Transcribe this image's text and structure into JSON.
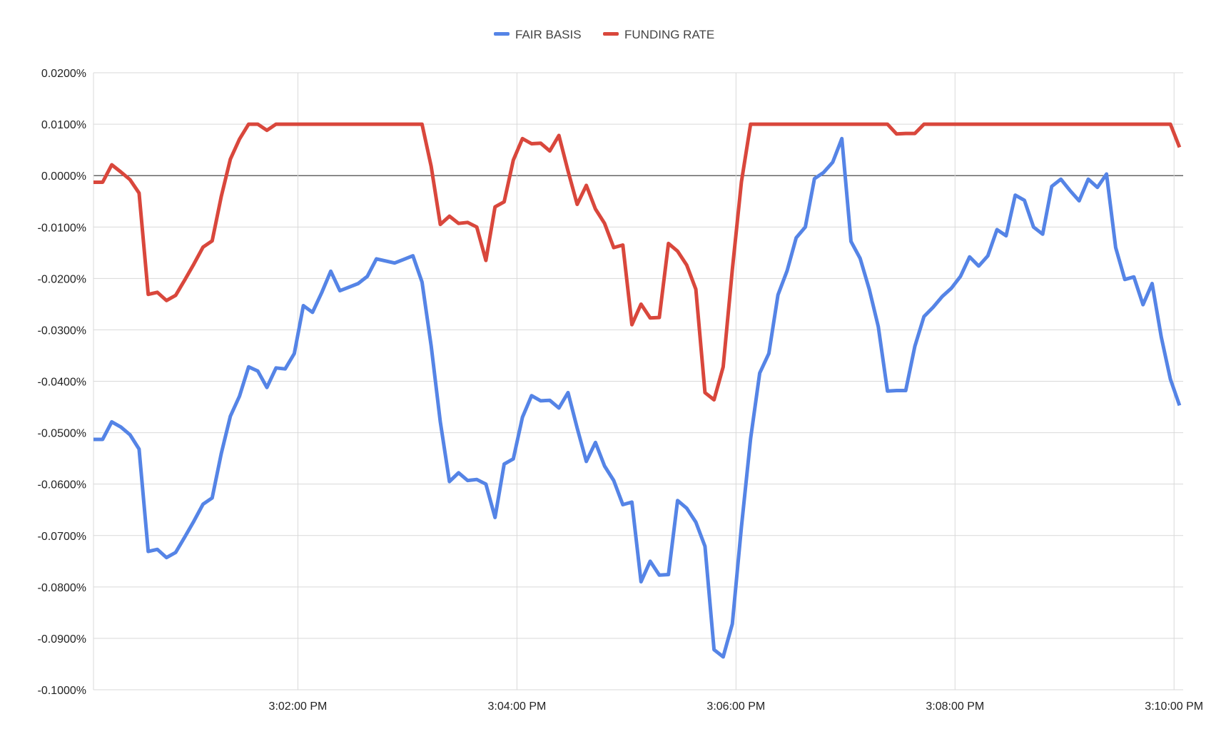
{
  "colors": {
    "fair_basis": "#5584e6",
    "funding_rate": "#d9473c",
    "grid": "#d9d9d9",
    "zero_line": "#333333"
  },
  "chart_data": {
    "type": "line",
    "legend": {
      "position": "top",
      "entries": [
        "FAIR BASIS",
        "FUNDING RATE"
      ]
    },
    "grid": true,
    "ylim": [
      -0.1,
      0.02
    ],
    "y_ticks": [
      0.02,
      0.01,
      0.0,
      -0.01,
      -0.02,
      -0.03,
      -0.04,
      -0.05,
      -0.06,
      -0.07,
      -0.08,
      -0.09,
      -0.1
    ],
    "y_tick_labels": [
      "0.0200%",
      "0.0100%",
      "0.0000%",
      "-0.0100%",
      "-0.0200%",
      "-0.0300%",
      "-0.0400%",
      "-0.0500%",
      "-0.0600%",
      "-0.0700%",
      "-0.0800%",
      "-0.0900%",
      "-0.1000%"
    ],
    "xlim": [
      "3:00:08 PM",
      "3:10:05 PM"
    ],
    "x_ticks": [
      "3:02:00 PM",
      "3:04:00 PM",
      "3:06:00 PM",
      "3:08:00 PM",
      "3:10:00 PM"
    ],
    "x_tick_labels": [
      "3:02:00 PM",
      "3:04:00 PM",
      "3:06:00 PM",
      "3:08:00 PM",
      "3:10:00 PM"
    ],
    "series": [
      {
        "name": "FAIR BASIS",
        "points": [
          [
            "3:00:08 PM",
            -0.0513
          ],
          [
            "3:00:13 PM",
            -0.0513
          ],
          [
            "3:00:18 PM",
            -0.0479
          ],
          [
            "3:00:23 PM",
            -0.0489
          ],
          [
            "3:00:28 PM",
            -0.0504
          ],
          [
            "3:00:33 PM",
            -0.0532
          ],
          [
            "3:00:38 PM",
            -0.0731
          ],
          [
            "3:00:43 PM",
            -0.0727
          ],
          [
            "3:00:48 PM",
            -0.0743
          ],
          [
            "3:00:53 PM",
            -0.0733
          ],
          [
            "3:00:58 PM",
            -0.0703
          ],
          [
            "3:01:03 PM",
            -0.0672
          ],
          [
            "3:01:08 PM",
            -0.0639
          ],
          [
            "3:01:13 PM",
            -0.0627
          ],
          [
            "3:01:18 PM",
            -0.0541
          ],
          [
            "3:01:23 PM",
            -0.0468
          ],
          [
            "3:01:28 PM",
            -0.0429
          ],
          [
            "3:01:33 PM",
            -0.0372
          ],
          [
            "3:01:38 PM",
            -0.038
          ],
          [
            "3:01:43 PM",
            -0.0412
          ],
          [
            "3:01:48 PM",
            -0.0374
          ],
          [
            "3:01:53 PM",
            -0.0376
          ],
          [
            "3:01:58 PM",
            -0.0346
          ],
          [
            "3:02:03 PM",
            -0.0253
          ],
          [
            "3:02:08 PM",
            -0.0266
          ],
          [
            "3:02:13 PM",
            -0.0228
          ],
          [
            "3:02:18 PM",
            -0.0186
          ],
          [
            "3:02:23 PM",
            -0.0224
          ],
          [
            "3:02:28 PM",
            -0.0217
          ],
          [
            "3:02:33 PM",
            -0.021
          ],
          [
            "3:02:38 PM",
            -0.0196
          ],
          [
            "3:02:43 PM",
            -0.0162
          ],
          [
            "3:02:48 PM",
            -0.0166
          ],
          [
            "3:02:53 PM",
            -0.017
          ],
          [
            "3:02:58 PM",
            -0.0163
          ],
          [
            "3:03:03 PM",
            -0.0156
          ],
          [
            "3:03:08 PM",
            -0.0207
          ],
          [
            "3:03:13 PM",
            -0.0331
          ],
          [
            "3:03:18 PM",
            -0.0479
          ],
          [
            "3:03:23 PM",
            -0.0595
          ],
          [
            "3:03:28 PM",
            -0.0578
          ],
          [
            "3:03:33 PM",
            -0.0593
          ],
          [
            "3:03:38 PM",
            -0.0591
          ],
          [
            "3:03:43 PM",
            -0.06
          ],
          [
            "3:03:48 PM",
            -0.0665
          ],
          [
            "3:03:53 PM",
            -0.0561
          ],
          [
            "3:03:58 PM",
            -0.0551
          ],
          [
            "3:04:03 PM",
            -0.047
          ],
          [
            "3:04:08 PM",
            -0.0428
          ],
          [
            "3:04:13 PM",
            -0.0438
          ],
          [
            "3:04:18 PM",
            -0.0437
          ],
          [
            "3:04:23 PM",
            -0.0452
          ],
          [
            "3:04:28 PM",
            -0.0422
          ],
          [
            "3:04:33 PM",
            -0.0491
          ],
          [
            "3:04:38 PM",
            -0.0556
          ],
          [
            "3:04:43 PM",
            -0.0519
          ],
          [
            "3:04:48 PM",
            -0.0565
          ],
          [
            "3:04:53 PM",
            -0.0593
          ],
          [
            "3:04:58 PM",
            -0.064
          ],
          [
            "3:05:03 PM",
            -0.0635
          ],
          [
            "3:05:08 PM",
            -0.079
          ],
          [
            "3:05:13 PM",
            -0.075
          ],
          [
            "3:05:18 PM",
            -0.0777
          ],
          [
            "3:05:23 PM",
            -0.0776
          ],
          [
            "3:05:28 PM",
            -0.0632
          ],
          [
            "3:05:33 PM",
            -0.0647
          ],
          [
            "3:05:38 PM",
            -0.0674
          ],
          [
            "3:05:43 PM",
            -0.0721
          ],
          [
            "3:05:48 PM",
            -0.0922
          ],
          [
            "3:05:53 PM",
            -0.0936
          ],
          [
            "3:05:58 PM",
            -0.0872
          ],
          [
            "3:06:03 PM",
            -0.0683
          ],
          [
            "3:06:08 PM",
            -0.0512
          ],
          [
            "3:06:13 PM",
            -0.0384
          ],
          [
            "3:06:18 PM",
            -0.0346
          ],
          [
            "3:06:23 PM",
            -0.0232
          ],
          [
            "3:06:28 PM",
            -0.0185
          ],
          [
            "3:06:33 PM",
            -0.0121
          ],
          [
            "3:06:38 PM",
            -0.01
          ],
          [
            "3:06:43 PM",
            -0.0006
          ],
          [
            "3:06:48 PM",
            0.0006
          ],
          [
            "3:06:53 PM",
            0.0026
          ],
          [
            "3:06:58 PM",
            0.0072
          ],
          [
            "3:07:03 PM",
            -0.0128
          ],
          [
            "3:07:08 PM",
            -0.0161
          ],
          [
            "3:07:13 PM",
            -0.0221
          ],
          [
            "3:07:18 PM",
            -0.0294
          ],
          [
            "3:07:23 PM",
            -0.0419
          ],
          [
            "3:07:28 PM",
            -0.0418
          ],
          [
            "3:07:33 PM",
            -0.0418
          ],
          [
            "3:07:38 PM",
            -0.0332
          ],
          [
            "3:07:43 PM",
            -0.0274
          ],
          [
            "3:07:48 PM",
            -0.0256
          ],
          [
            "3:07:53 PM",
            -0.0235
          ],
          [
            "3:07:58 PM",
            -0.0219
          ],
          [
            "3:08:03 PM",
            -0.0196
          ],
          [
            "3:08:08 PM",
            -0.0158
          ],
          [
            "3:08:13 PM",
            -0.0176
          ],
          [
            "3:08:18 PM",
            -0.0156
          ],
          [
            "3:08:23 PM",
            -0.0105
          ],
          [
            "3:08:28 PM",
            -0.0117
          ],
          [
            "3:08:33 PM",
            -0.0038
          ],
          [
            "3:08:38 PM",
            -0.0048
          ],
          [
            "3:08:43 PM",
            -0.01
          ],
          [
            "3:08:48 PM",
            -0.0114
          ],
          [
            "3:08:53 PM",
            -0.0021
          ],
          [
            "3:08:58 PM",
            -0.0007
          ],
          [
            "3:09:03 PM",
            -0.0029
          ],
          [
            "3:09:08 PM",
            -0.0049
          ],
          [
            "3:09:13 PM",
            -0.0007
          ],
          [
            "3:09:18 PM",
            -0.0023
          ],
          [
            "3:09:23 PM",
            0.0003
          ],
          [
            "3:09:28 PM",
            -0.014
          ],
          [
            "3:09:33 PM",
            -0.0202
          ],
          [
            "3:09:38 PM",
            -0.0197
          ],
          [
            "3:09:43 PM",
            -0.0251
          ],
          [
            "3:09:48 PM",
            -0.021
          ],
          [
            "3:09:53 PM",
            -0.0314
          ],
          [
            "3:09:58 PM",
            -0.0396
          ],
          [
            "3:10:03 PM",
            -0.0447
          ]
        ]
      },
      {
        "name": "FUNDING RATE",
        "points": [
          [
            "3:00:08 PM",
            -0.0013
          ],
          [
            "3:00:13 PM",
            -0.0013
          ],
          [
            "3:00:18 PM",
            0.0021
          ],
          [
            "3:00:23 PM",
            0.0007
          ],
          [
            "3:00:28 PM",
            -0.0008
          ],
          [
            "3:00:33 PM",
            -0.0034
          ],
          [
            "3:00:38 PM",
            -0.0231
          ],
          [
            "3:00:43 PM",
            -0.0227
          ],
          [
            "3:00:48 PM",
            -0.0243
          ],
          [
            "3:00:53 PM",
            -0.0233
          ],
          [
            "3:00:58 PM",
            -0.0203
          ],
          [
            "3:01:03 PM",
            -0.0172
          ],
          [
            "3:01:08 PM",
            -0.0139
          ],
          [
            "3:01:13 PM",
            -0.0127
          ],
          [
            "3:01:18 PM",
            -0.0041
          ],
          [
            "3:01:23 PM",
            0.0032
          ],
          [
            "3:01:28 PM",
            0.0071
          ],
          [
            "3:01:33 PM",
            0.01
          ],
          [
            "3:01:38 PM",
            0.01
          ],
          [
            "3:01:43 PM",
            0.0088
          ],
          [
            "3:01:48 PM",
            0.01
          ],
          [
            "3:01:53 PM",
            0.01
          ],
          [
            "3:01:58 PM",
            0.01
          ],
          [
            "3:02:03 PM",
            0.01
          ],
          [
            "3:02:08 PM",
            0.01
          ],
          [
            "3:02:13 PM",
            0.01
          ],
          [
            "3:02:18 PM",
            0.01
          ],
          [
            "3:02:23 PM",
            0.01
          ],
          [
            "3:02:28 PM",
            0.01
          ],
          [
            "3:02:33 PM",
            0.01
          ],
          [
            "3:02:38 PM",
            0.01
          ],
          [
            "3:02:43 PM",
            0.01
          ],
          [
            "3:02:48 PM",
            0.01
          ],
          [
            "3:02:53 PM",
            0.01
          ],
          [
            "3:02:58 PM",
            0.01
          ],
          [
            "3:03:03 PM",
            0.01
          ],
          [
            "3:03:08 PM",
            0.01
          ],
          [
            "3:03:13 PM",
            0.0018
          ],
          [
            "3:03:18 PM",
            -0.0095
          ],
          [
            "3:03:23 PM",
            -0.0079
          ],
          [
            "3:03:28 PM",
            -0.0093
          ],
          [
            "3:03:33 PM",
            -0.0091
          ],
          [
            "3:03:38 PM",
            -0.01
          ],
          [
            "3:03:43 PM",
            -0.0165
          ],
          [
            "3:03:48 PM",
            -0.0061
          ],
          [
            "3:03:53 PM",
            -0.0051
          ],
          [
            "3:03:58 PM",
            0.003
          ],
          [
            "3:04:03 PM",
            0.0072
          ],
          [
            "3:04:08 PM",
            0.0062
          ],
          [
            "3:04:13 PM",
            0.0063
          ],
          [
            "3:04:18 PM",
            0.0048
          ],
          [
            "3:04:23 PM",
            0.0078
          ],
          [
            "3:04:28 PM",
            0.0009
          ],
          [
            "3:04:33 PM",
            -0.0056
          ],
          [
            "3:04:38 PM",
            -0.0019
          ],
          [
            "3:04:43 PM",
            -0.0065
          ],
          [
            "3:04:48 PM",
            -0.0093
          ],
          [
            "3:04:53 PM",
            -0.014
          ],
          [
            "3:04:58 PM",
            -0.0135
          ],
          [
            "3:05:03 PM",
            -0.029
          ],
          [
            "3:05:08 PM",
            -0.025
          ],
          [
            "3:05:13 PM",
            -0.0277
          ],
          [
            "3:05:18 PM",
            -0.0276
          ],
          [
            "3:05:23 PM",
            -0.0132
          ],
          [
            "3:05:28 PM",
            -0.0147
          ],
          [
            "3:05:33 PM",
            -0.0174
          ],
          [
            "3:05:38 PM",
            -0.0221
          ],
          [
            "3:05:43 PM",
            -0.0422
          ],
          [
            "3:05:48 PM",
            -0.0436
          ],
          [
            "3:05:53 PM",
            -0.0372
          ],
          [
            "3:05:58 PM",
            -0.0183
          ],
          [
            "3:06:03 PM",
            -0.0012
          ],
          [
            "3:06:08 PM",
            0.01
          ],
          [
            "3:06:13 PM",
            0.01
          ],
          [
            "3:06:18 PM",
            0.01
          ],
          [
            "3:06:23 PM",
            0.01
          ],
          [
            "3:06:28 PM",
            0.01
          ],
          [
            "3:06:33 PM",
            0.01
          ],
          [
            "3:06:38 PM",
            0.01
          ],
          [
            "3:06:43 PM",
            0.01
          ],
          [
            "3:06:48 PM",
            0.01
          ],
          [
            "3:06:53 PM",
            0.01
          ],
          [
            "3:06:58 PM",
            0.01
          ],
          [
            "3:07:03 PM",
            0.01
          ],
          [
            "3:07:08 PM",
            0.01
          ],
          [
            "3:07:13 PM",
            0.01
          ],
          [
            "3:07:18 PM",
            0.01
          ],
          [
            "3:07:23 PM",
            0.01
          ],
          [
            "3:07:28 PM",
            0.0081
          ],
          [
            "3:07:33 PM",
            0.0082
          ],
          [
            "3:07:38 PM",
            0.0082
          ],
          [
            "3:07:43 PM",
            0.01
          ],
          [
            "3:07:48 PM",
            0.01
          ],
          [
            "3:07:53 PM",
            0.01
          ],
          [
            "3:07:58 PM",
            0.01
          ],
          [
            "3:08:03 PM",
            0.01
          ],
          [
            "3:08:08 PM",
            0.01
          ],
          [
            "3:08:13 PM",
            0.01
          ],
          [
            "3:08:18 PM",
            0.01
          ],
          [
            "3:08:23 PM",
            0.01
          ],
          [
            "3:08:28 PM",
            0.01
          ],
          [
            "3:08:33 PM",
            0.01
          ],
          [
            "3:08:38 PM",
            0.01
          ],
          [
            "3:08:43 PM",
            0.01
          ],
          [
            "3:08:48 PM",
            0.01
          ],
          [
            "3:08:53 PM",
            0.01
          ],
          [
            "3:08:58 PM",
            0.01
          ],
          [
            "3:09:03 PM",
            0.01
          ],
          [
            "3:09:08 PM",
            0.01
          ],
          [
            "3:09:13 PM",
            0.01
          ],
          [
            "3:09:18 PM",
            0.01
          ],
          [
            "3:09:23 PM",
            0.01
          ],
          [
            "3:09:28 PM",
            0.01
          ],
          [
            "3:09:33 PM",
            0.01
          ],
          [
            "3:09:38 PM",
            0.01
          ],
          [
            "3:09:43 PM",
            0.01
          ],
          [
            "3:09:48 PM",
            0.01
          ],
          [
            "3:09:53 PM",
            0.01
          ],
          [
            "3:09:58 PM",
            0.01
          ],
          [
            "3:10:03 PM",
            0.0055
          ]
        ]
      }
    ]
  }
}
